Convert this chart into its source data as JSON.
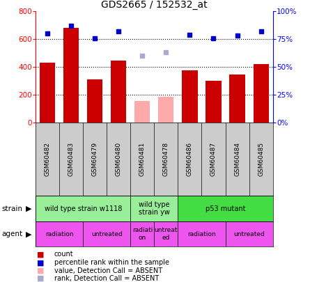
{
  "title": "GDS2665 / 152532_at",
  "samples": [
    "GSM60482",
    "GSM60483",
    "GSM60479",
    "GSM60480",
    "GSM60481",
    "GSM60478",
    "GSM60486",
    "GSM60487",
    "GSM60484",
    "GSM60485"
  ],
  "count_values": [
    430,
    680,
    310,
    445,
    null,
    null,
    375,
    300,
    345,
    420
  ],
  "count_absent": [
    null,
    null,
    null,
    null,
    155,
    185,
    null,
    null,
    null,
    null
  ],
  "rank_values": [
    80,
    87,
    76,
    82,
    null,
    null,
    79,
    76,
    78,
    82
  ],
  "rank_absent": [
    null,
    null,
    null,
    null,
    60,
    63,
    null,
    null,
    null,
    null
  ],
  "bar_color": "#cc0000",
  "bar_absent_color": "#ffaaaa",
  "rank_color": "#0000cc",
  "rank_absent_color": "#aaaacc",
  "ylim_left": [
    0,
    800
  ],
  "ylim_right": [
    0,
    100
  ],
  "yticks_left": [
    0,
    200,
    400,
    600,
    800
  ],
  "yticks_right": [
    0,
    25,
    50,
    75,
    100
  ],
  "yticklabels_right": [
    "0%",
    "25%",
    "50%",
    "75%",
    "100%"
  ],
  "grid_lines": [
    200,
    400,
    600
  ],
  "strain_groups": [
    {
      "label": "wild type strain w1118",
      "start": 0,
      "end": 4,
      "color": "#99ee99"
    },
    {
      "label": "wild type\nstrain yw",
      "start": 4,
      "end": 6,
      "color": "#99ee99"
    },
    {
      "label": "p53 mutant",
      "start": 6,
      "end": 10,
      "color": "#44dd44"
    }
  ],
  "agent_groups": [
    {
      "label": "radiation",
      "start": 0,
      "end": 2,
      "color": "#ee55ee"
    },
    {
      "label": "untreated",
      "start": 2,
      "end": 4,
      "color": "#ee55ee"
    },
    {
      "label": "radiati\non",
      "start": 4,
      "end": 5,
      "color": "#ee55ee"
    },
    {
      "label": "untreat\ned",
      "start": 5,
      "end": 6,
      "color": "#ee55ee"
    },
    {
      "label": "radiation",
      "start": 6,
      "end": 8,
      "color": "#ee55ee"
    },
    {
      "label": "untreated",
      "start": 8,
      "end": 10,
      "color": "#ee55ee"
    }
  ],
  "legend_items": [
    {
      "label": "count",
      "color": "#cc0000"
    },
    {
      "label": "percentile rank within the sample",
      "color": "#0000cc"
    },
    {
      "label": "value, Detection Call = ABSENT",
      "color": "#ffaaaa"
    },
    {
      "label": "rank, Detection Call = ABSENT",
      "color": "#aaaacc"
    }
  ],
  "label_bg_color": "#cccccc",
  "fig_width": 4.45,
  "fig_height": 4.05,
  "dpi": 100
}
